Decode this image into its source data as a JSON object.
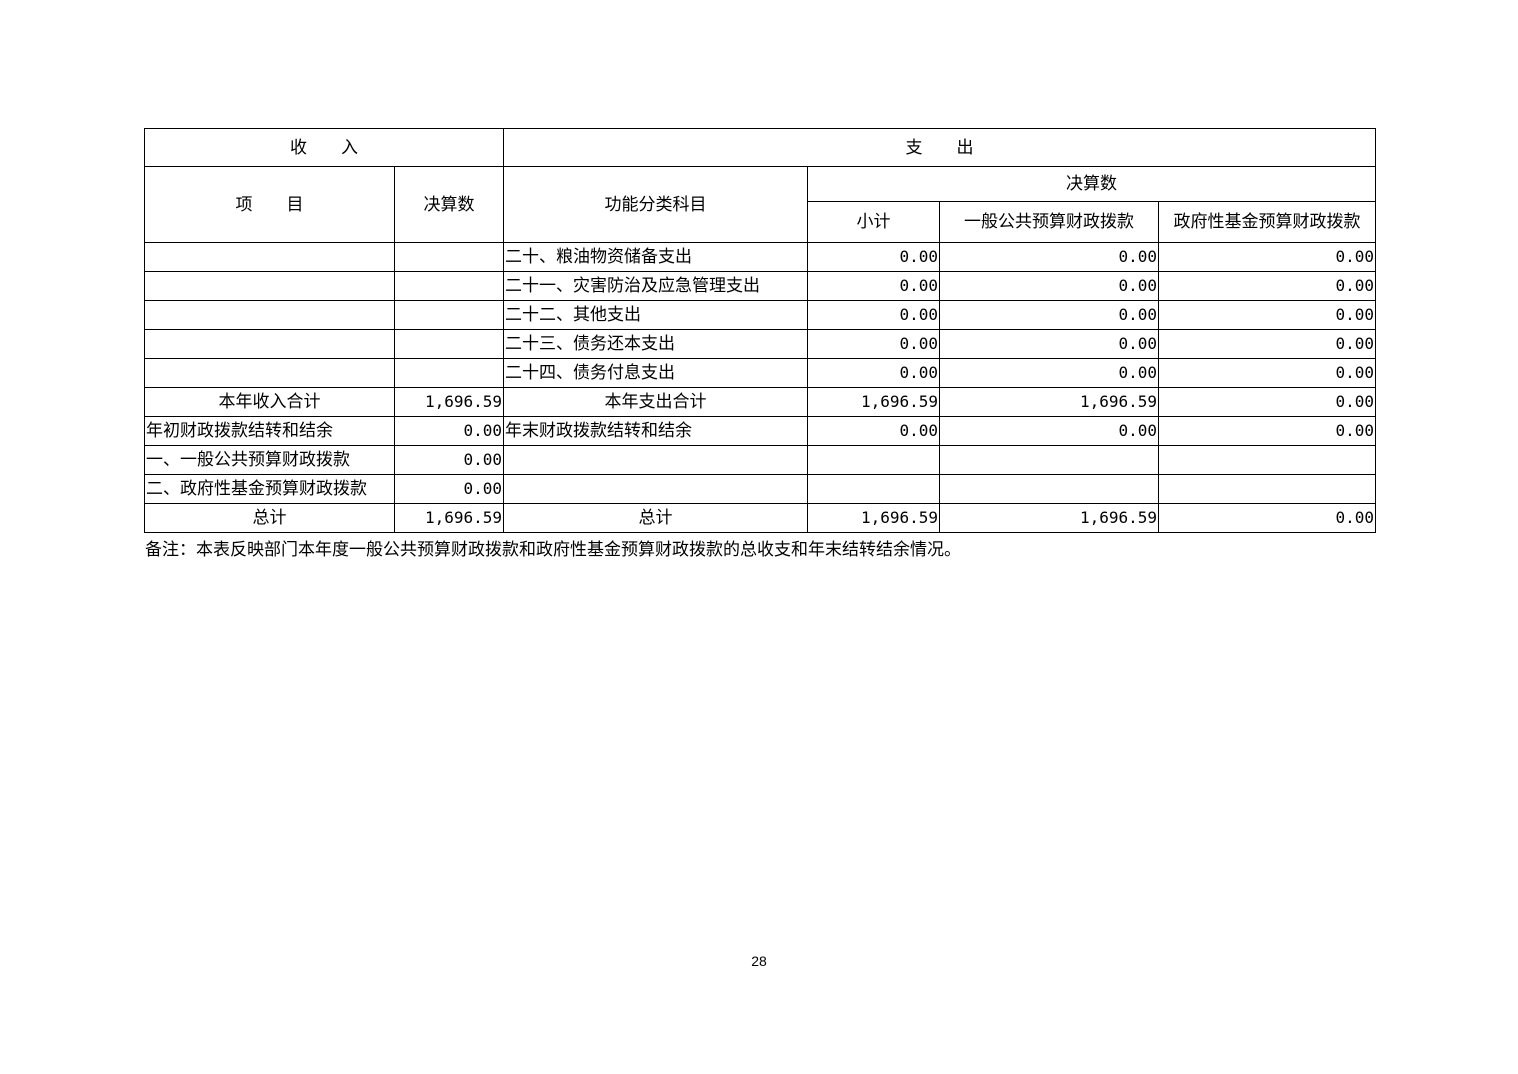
{
  "table": {
    "header": {
      "income": "收　　入",
      "expense": "支　　出",
      "item": "项　　目",
      "final_amount": "决算数",
      "function_category": "功能分类科目",
      "final_amount_group": "决算数",
      "subtotal": "小计",
      "general_budget": "一般公共预算财政拨款",
      "gov_fund_budget": "政府性基金预算财政拨款"
    },
    "rows": [
      {
        "item": "",
        "amount": "",
        "category": "二十、粮油物资储备支出",
        "subtotal": "0.00",
        "general": "0.00",
        "fund": "0.00"
      },
      {
        "item": "",
        "amount": "",
        "category": "二十一、灾害防治及应急管理支出",
        "subtotal": "0.00",
        "general": "0.00",
        "fund": "0.00"
      },
      {
        "item": "",
        "amount": "",
        "category": "二十二、其他支出",
        "subtotal": "0.00",
        "general": "0.00",
        "fund": "0.00"
      },
      {
        "item": "",
        "amount": "",
        "category": "二十三、债务还本支出",
        "subtotal": "0.00",
        "general": "0.00",
        "fund": "0.00"
      },
      {
        "item": "",
        "amount": "",
        "category": "二十四、债务付息支出",
        "subtotal": "0.00",
        "general": "0.00",
        "fund": "0.00"
      },
      {
        "item": "本年收入合计",
        "amount": "1,696.59",
        "category": "本年支出合计",
        "subtotal": "1,696.59",
        "general": "1,696.59",
        "fund": "0.00"
      },
      {
        "item": "年初财政拨款结转和结余",
        "amount": "0.00",
        "category": "年末财政拨款结转和结余",
        "subtotal": "0.00",
        "general": "0.00",
        "fund": "0.00"
      },
      {
        "item": "一、一般公共预算财政拨款",
        "amount": "0.00",
        "category": "",
        "subtotal": "",
        "general": "",
        "fund": ""
      },
      {
        "item": "二、政府性基金预算财政拨款",
        "amount": "0.00",
        "category": "",
        "subtotal": "",
        "general": "",
        "fund": ""
      },
      {
        "item": "总计",
        "amount": "1,696.59",
        "category": "总计",
        "subtotal": "1,696.59",
        "general": "1,696.59",
        "fund": "0.00"
      }
    ]
  },
  "note": "备注：本表反映部门本年度一般公共预算财政拨款和政府性基金预算财政拨款的总收支和年末结转结余情况。",
  "page_number": "28"
}
